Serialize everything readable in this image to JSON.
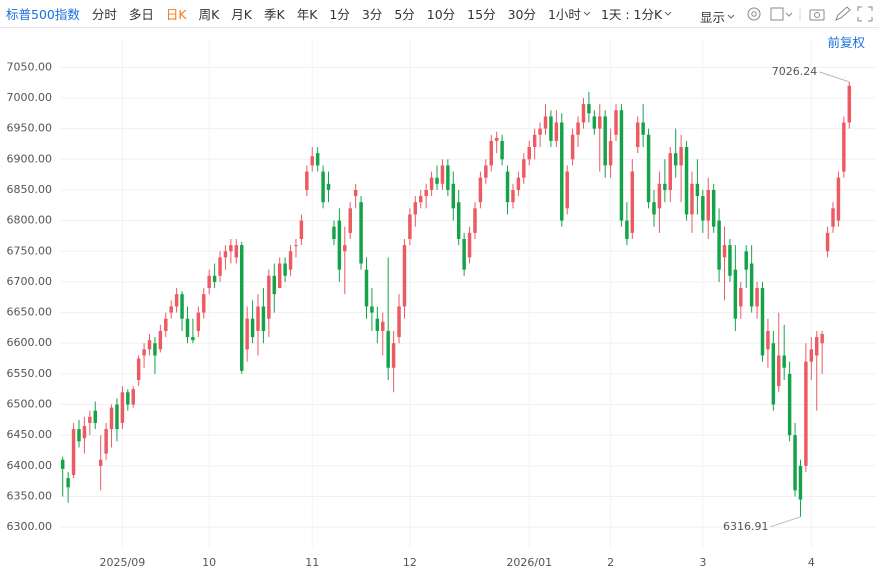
{
  "toolbar": {
    "title": "标普500指数",
    "tabs": [
      "分时",
      "多日",
      "日K",
      "周K",
      "月K",
      "季K",
      "年K",
      "1分",
      "3分",
      "5分",
      "10分",
      "15分",
      "30分",
      "1小时",
      "1天 : 1分K"
    ],
    "display": "显示"
  },
  "adjust": "前复权",
  "chart_data": {
    "type": "candlestick",
    "up_color": "#ec5a62",
    "down_color": "#15a34a",
    "grid": true,
    "ylim": [
      6266,
      7075
    ],
    "yticks": [
      {
        "value": 6300,
        "label": "6300.00"
      },
      {
        "value": 6350,
        "label": "6350.00"
      },
      {
        "value": 6400,
        "label": "6400.00"
      },
      {
        "value": 6450,
        "label": "6450.00"
      },
      {
        "value": 6500,
        "label": "6500.00"
      },
      {
        "value": 6550,
        "label": "6550.00"
      },
      {
        "value": 6600,
        "label": "6600.00"
      },
      {
        "value": 6650,
        "label": "6650.00"
      },
      {
        "value": 6700,
        "label": "6700.00"
      },
      {
        "value": 6750,
        "label": "6750.00"
      },
      {
        "value": 6800,
        "label": "6800.00"
      },
      {
        "value": 6850,
        "label": "6850.00"
      },
      {
        "value": 6900,
        "label": "6900.00"
      },
      {
        "value": 6950,
        "label": "6950.00"
      },
      {
        "value": 7000,
        "label": "7000.00"
      },
      {
        "value": 7050,
        "label": "7050.00"
      }
    ],
    "categories": [
      null,
      null,
      null,
      null,
      null,
      null,
      null,
      null,
      null,
      null,
      null,
      "2025/09",
      null,
      null,
      null,
      null,
      null,
      null,
      null,
      null,
      null,
      null,
      null,
      null,
      null,
      null,
      null,
      "10",
      null,
      null,
      null,
      null,
      null,
      null,
      null,
      null,
      null,
      null,
      null,
      null,
      null,
      null,
      null,
      null,
      null,
      null,
      "11",
      null,
      null,
      null,
      null,
      null,
      null,
      null,
      null,
      null,
      null,
      null,
      null,
      null,
      null,
      null,
      null,
      null,
      "12",
      null,
      null,
      null,
      null,
      null,
      null,
      null,
      null,
      null,
      null,
      null,
      null,
      null,
      null,
      null,
      null,
      null,
      null,
      null,
      null,
      null,
      "2026/01",
      null,
      null,
      null,
      null,
      null,
      null,
      null,
      null,
      null,
      null,
      null,
      null,
      null,
      null,
      "2",
      null,
      null,
      null,
      null,
      null,
      null,
      null,
      null,
      null,
      null,
      null,
      null,
      null,
      null,
      null,
      null,
      "3",
      null,
      null,
      null,
      null,
      null,
      null,
      null,
      null,
      null,
      null,
      null,
      null,
      null,
      null,
      null,
      null,
      null,
      null,
      null,
      "4",
      null,
      null,
      null,
      null,
      null,
      null,
      null
    ],
    "open": [
      6410,
      6380,
      6385,
      6460,
      6445,
      6470,
      6490,
      6400,
      6420,
      6460,
      6500,
      6470,
      6520,
      6500,
      6540,
      6580,
      6590,
      6600,
      6590,
      6620,
      6650,
      6660,
      6680,
      6640,
      6610,
      6620,
      6650,
      6690,
      6710,
      6710,
      6740,
      6750,
      6740,
      6760,
      6590,
      6640,
      6620,
      6660,
      6640,
      6710,
      6690,
      6730,
      6720,
      6760,
      6770,
      6850,
      6890,
      6910,
      6880,
      6860,
      6790,
      6800,
      6750,
      6780,
      6840,
      6830,
      6720,
      6660,
      6640,
      6620,
      6620,
      6560,
      6610,
      6660,
      6770,
      6810,
      6830,
      6840,
      6850,
      6870,
      6860,
      6890,
      6860,
      6830,
      6770,
      6740,
      6780,
      6830,
      6870,
      6890,
      6930,
      6930,
      6880,
      6830,
      6850,
      6870,
      6900,
      6920,
      6940,
      6950,
      6970,
      6930,
      6960,
      6820,
      6900,
      6940,
      6960,
      6990,
      6970,
      6950,
      6970,
      6890,
      6940,
      6980,
      6800,
      6780,
      6920,
      6960,
      6940,
      6830,
      6820,
      6860,
      6850,
      6910,
      6890,
      6920,
      6810,
      6860,
      6840,
      6800,
      6850,
      6800,
      6740,
      6760,
      6720,
      6660,
      6750,
      6730,
      6660,
      6690,
      6590,
      6600,
      6530,
      6580,
      6550,
      6450,
      6400,
      6400,
      6570,
      6580,
      6600,
      6750,
      6790,
      6800,
      6880,
      6960
    ],
    "high": [
      6415,
      6390,
      6470,
      6475,
      6480,
      6490,
      6505,
      6450,
      6470,
      6500,
      6510,
      6530,
      6525,
      6530,
      6580,
      6600,
      6615,
      6610,
      6630,
      6650,
      6670,
      6690,
      6685,
      6660,
      6640,
      6660,
      6690,
      6720,
      6730,
      6750,
      6760,
      6770,
      6770,
      6765,
      6660,
      6670,
      6680,
      6690,
      6720,
      6730,
      6740,
      6740,
      6760,
      6770,
      6810,
      6890,
      6920,
      6920,
      6890,
      6880,
      6800,
      6820,
      6790,
      6830,
      6860,
      6840,
      6740,
      6690,
      6660,
      6650,
      6740,
      6620,
      6680,
      6770,
      6820,
      6840,
      6850,
      6860,
      6880,
      6890,
      6900,
      6900,
      6880,
      6850,
      6780,
      6790,
      6830,
      6880,
      6900,
      6940,
      6945,
      6940,
      6890,
      6860,
      6880,
      6910,
      6930,
      6950,
      6960,
      6990,
      6980,
      6980,
      6975,
      6890,
      6950,
      6970,
      7000,
      7010,
      6980,
      6990,
      6980,
      6950,
      6990,
      6990,
      6830,
      6900,
      6970,
      6990,
      6950,
      6850,
      6880,
      6900,
      6920,
      6950,
      6940,
      6930,
      6880,
      6900,
      6850,
      6870,
      6860,
      6820,
      6790,
      6770,
      6760,
      6700,
      6760,
      6760,
      6700,
      6700,
      6640,
      6620,
      6650,
      6630,
      6570,
      6470,
      6410,
      6600,
      6610,
      6620,
      6620,
      6790,
      6830,
      6880,
      6970,
      7026.24
    ],
    "low": [
      6350,
      6340,
      6380,
      6430,
      6420,
      6450,
      6460,
      6360,
      6410,
      6430,
      6440,
      6460,
      6490,
      6495,
      6530,
      6560,
      6580,
      6550,
      6585,
      6610,
      6640,
      6650,
      6620,
      6600,
      6600,
      6610,
      6640,
      6680,
      6690,
      6700,
      6720,
      6730,
      6730,
      6550,
      6570,
      6600,
      6580,
      6600,
      6610,
      6650,
      6690,
      6700,
      6710,
      6740,
      6760,
      6840,
      6880,
      6880,
      6820,
      6830,
      6760,
      6700,
      6680,
      6770,
      6820,
      6720,
      6640,
      6620,
      6600,
      6580,
      6540,
      6520,
      6600,
      6640,
      6760,
      6790,
      6820,
      6820,
      6840,
      6850,
      6850,
      6840,
      6800,
      6760,
      6710,
      6730,
      6770,
      6820,
      6860,
      6880,
      6910,
      6890,
      6810,
      6820,
      6840,
      6860,
      6890,
      6900,
      6920,
      6940,
      6920,
      6920,
      6790,
      6810,
      6890,
      6920,
      6950,
      6960,
      6940,
      6880,
      6870,
      6870,
      6930,
      6790,
      6760,
      6770,
      6910,
      6920,
      6820,
      6790,
      6780,
      6830,
      6830,
      6870,
      6830,
      6800,
      6780,
      6810,
      6780,
      6770,
      6780,
      6700,
      6670,
      6700,
      6620,
      6640,
      6690,
      6650,
      6640,
      6570,
      6560,
      6490,
      6520,
      6540,
      6440,
      6350,
      6316.91,
      6390,
      6540,
      6490,
      6550,
      6740,
      6780,
      6790,
      6870,
      6950
    ],
    "close": [
      6395,
      6365,
      6460,
      6440,
      6465,
      6480,
      6470,
      6410,
      6460,
      6495,
      6460,
      6520,
      6500,
      6525,
      6575,
      6590,
      6605,
      6580,
      6620,
      6640,
      6660,
      6680,
      6640,
      6610,
      6605,
      6650,
      6680,
      6710,
      6700,
      6740,
      6750,
      6760,
      6760,
      6555,
      6640,
      6610,
      6660,
      6620,
      6710,
      6680,
      6730,
      6710,
      6750,
      6760,
      6800,
      6880,
      6905,
      6890,
      6830,
      6850,
      6770,
      6720,
      6760,
      6820,
      6850,
      6730,
      6660,
      6650,
      6620,
      6635,
      6560,
      6600,
      6660,
      6760,
      6810,
      6830,
      6840,
      6850,
      6870,
      6860,
      6890,
      6850,
      6820,
      6770,
      6720,
      6780,
      6820,
      6870,
      6890,
      6930,
      6935,
      6900,
      6830,
      6850,
      6870,
      6900,
      6920,
      6940,
      6950,
      6970,
      6930,
      6960,
      6800,
      6880,
      6940,
      6960,
      6990,
      6975,
      6950,
      6970,
      6890,
      6930,
      6980,
      6800,
      6770,
      6880,
      6960,
      6940,
      6830,
      6810,
      6860,
      6850,
      6910,
      6890,
      6920,
      6810,
      6860,
      6840,
      6800,
      6850,
      6790,
      6720,
      6760,
      6710,
      6640,
      6690,
      6720,
      6660,
      6690,
      6580,
      6620,
      6500,
      6580,
      6560,
      6450,
      6360,
      6345,
      6570,
      6590,
      6610,
      6615,
      6780,
      6820,
      6870,
      6960,
      7020
    ]
  }
}
